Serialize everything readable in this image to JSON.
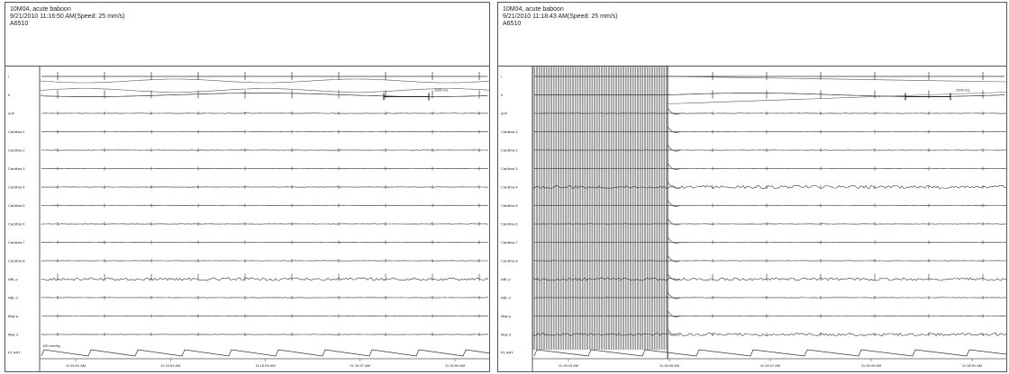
{
  "left": {
    "header": [
      "10M04, acute baboon",
      "9/21/2010 11:16:50 AM(Speed: 25 mm/s)",
      "A6510"
    ],
    "channels": [
      "I",
      "II",
      "aVF",
      "Cardima 1",
      "Cardima 2",
      "Cardima 3",
      "Cardima 4",
      "Cardima 5",
      "Cardima 6",
      "Cardima 7",
      "Cardima 8",
      "ABL p",
      "ABL d",
      "Map p",
      "Map d",
      "P1 ART"
    ],
    "scale_label": "1000 ms",
    "art_label": "100 mmHg",
    "time_labels": [
      "11:16:51 AM",
      "11:16:53 AM",
      "11:16:55 AM",
      "11:16:57 AM",
      "11:16:59 AM"
    ]
  },
  "right": {
    "header": [
      "10M04, acute baboon",
      "9/21/2010 11:18:43 AM(Speed: 25 mm/s)",
      "A6510"
    ],
    "channels": [
      "I",
      "II",
      "aVF",
      "Cardima 1",
      "Cardima 2",
      "Cardima 3",
      "Cardima 4",
      "Cardima 5",
      "Cardima 6",
      "Cardima 7",
      "Cardima 8",
      "ABL p",
      "ABL d",
      "Map p",
      "Map d",
      "P1 ART"
    ],
    "scale_label": "1000 ms",
    "time_labels": [
      "11:18:43 AM",
      "11:18:45 AM",
      "11:18:47 AM",
      "11:18:49 AM",
      "11:18:51 AM"
    ]
  }
}
